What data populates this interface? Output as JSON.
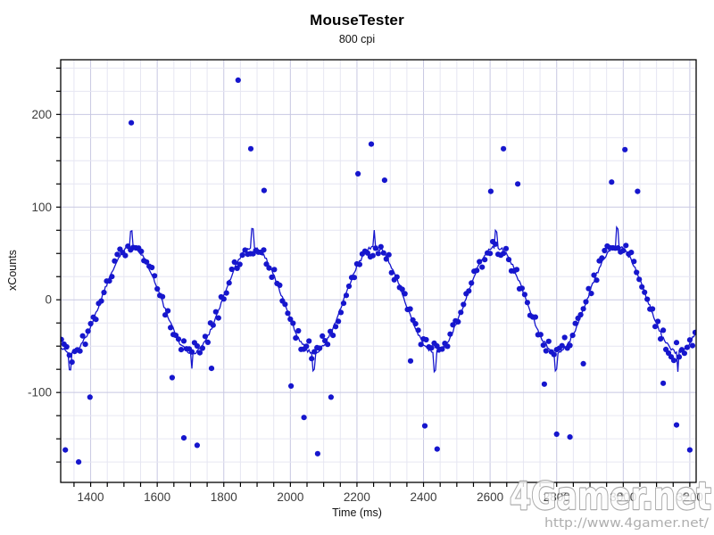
{
  "chart_data": {
    "type": "scatter",
    "title": "MouseTester",
    "subtitle": "800 cpi",
    "xlabel": "Time (ms)",
    "ylabel": "xCounts",
    "xlim": [
      1310,
      3219
    ],
    "ylim": [
      -197,
      259
    ],
    "x_major_ticks": [
      1400,
      1600,
      1800,
      2000,
      2200,
      2400,
      2600,
      2800,
      3000,
      3200
    ],
    "x_minor_step": 50,
    "y_major_ticks": [
      -100,
      0,
      100,
      200
    ],
    "y_minor_step": 25,
    "grid": true,
    "legend": "none",
    "colors": {
      "series": "#1616cd",
      "grid_minor": "#e6e6f2",
      "grid_major": "#c8c8e2",
      "axis": "#000000",
      "tick_label": "#3c3c3c"
    },
    "wave_model": {
      "description": "sinusoidal mouse xCounts trace: raw reports (dots) plus interpolated line with overshoot spikes at extremes",
      "amplitude": 57,
      "period_ms": 365,
      "first_peak_ms": 1522,
      "peaks_ms": [
        1522,
        1887,
        2252,
        2617,
        2982
      ],
      "troughs_ms": [
        1339,
        1704,
        2069,
        2434,
        2799,
        3164
      ],
      "sample_interval_ms": 8,
      "line_interval_ms": 4,
      "noise_counts": 8,
      "line_overshoot_factor": 1.33,
      "t_start": 1312,
      "t_end": 3218,
      "seed": 1337
    },
    "outliers": [
      [
        1522,
        191
      ],
      [
        1843,
        237
      ],
      [
        1881,
        163
      ],
      [
        1921,
        118
      ],
      [
        2203,
        136
      ],
      [
        2243,
        168
      ],
      [
        2283,
        129
      ],
      [
        2602,
        117
      ],
      [
        2640,
        163
      ],
      [
        2683,
        125
      ],
      [
        2965,
        127
      ],
      [
        3005,
        162
      ],
      [
        3043,
        117
      ],
      [
        1324,
        -162
      ],
      [
        1364,
        -175
      ],
      [
        1398,
        -105
      ],
      [
        1645,
        -84
      ],
      [
        1680,
        -149
      ],
      [
        1720,
        -157
      ],
      [
        1763,
        -74
      ],
      [
        2002,
        -93
      ],
      [
        2041,
        -127
      ],
      [
        2082,
        -166
      ],
      [
        2122,
        -105
      ],
      [
        2361,
        -66
      ],
      [
        2404,
        -136
      ],
      [
        2441,
        -161
      ],
      [
        2763,
        -91
      ],
      [
        2800,
        -145
      ],
      [
        2840,
        -148
      ],
      [
        2880,
        -69
      ],
      [
        3120,
        -90
      ],
      [
        3160,
        -135
      ],
      [
        3200,
        -162
      ]
    ]
  },
  "watermark": {
    "brand": "4Gamer.net",
    "url": "http://www.4gamer.net/",
    "outline_color": "#9a9a9a",
    "fill_color": "#fdfdfd",
    "url_color": "#9d9d9d"
  }
}
